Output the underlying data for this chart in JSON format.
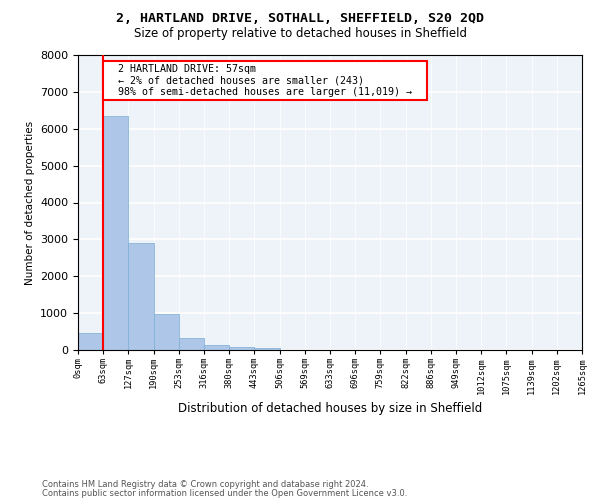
{
  "title1": "2, HARTLAND DRIVE, SOTHALL, SHEFFIELD, S20 2QD",
  "title2": "Size of property relative to detached houses in Sheffield",
  "xlabel": "Distribution of detached houses by size in Sheffield",
  "ylabel": "Number of detached properties",
  "footnote1": "Contains HM Land Registry data © Crown copyright and database right 2024.",
  "footnote2": "Contains public sector information licensed under the Open Government Licence v3.0.",
  "annotation_title": "2 HARTLAND DRIVE: 57sqm",
  "annotation_line2": "← 2% of detached houses are smaller (243)",
  "annotation_line3": "98% of semi-detached houses are larger (11,019) →",
  "bar_values": [
    450,
    6350,
    2900,
    970,
    320,
    130,
    75,
    50,
    0,
    0,
    0,
    0,
    0,
    0,
    0,
    0,
    0,
    0,
    0,
    0
  ],
  "categories": [
    "0sqm",
    "63sqm",
    "127sqm",
    "190sqm",
    "253sqm",
    "316sqm",
    "380sqm",
    "443sqm",
    "506sqm",
    "569sqm",
    "633sqm",
    "696sqm",
    "759sqm",
    "822sqm",
    "886sqm",
    "949sqm",
    "1012sqm",
    "1075sqm",
    "1139sqm",
    "1202sqm",
    "1265sqm"
  ],
  "bar_color": "#aec6e8",
  "bar_edge_color": "#7bafd4",
  "property_line_x": 1,
  "ylim": [
    0,
    8000
  ],
  "annotation_box_color": "white",
  "annotation_box_edge": "red",
  "vline_color": "red",
  "background_color": "#eef2f9"
}
